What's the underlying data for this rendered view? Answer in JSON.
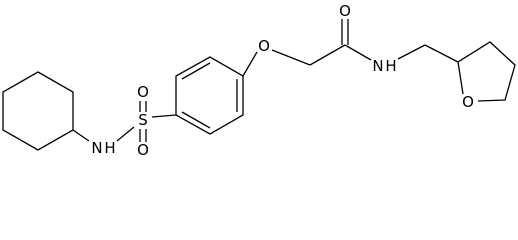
{
  "atoms": [
    {
      "label": "O"
    },
    {
      "label": "O"
    },
    {
      "label": "N"
    },
    {
      "label": "H"
    },
    {
      "label": "O"
    },
    {
      "label": "S"
    },
    {
      "label": "O"
    },
    {
      "label": "O"
    },
    {
      "label": "N"
    },
    {
      "label": "H"
    }
  ]
}
